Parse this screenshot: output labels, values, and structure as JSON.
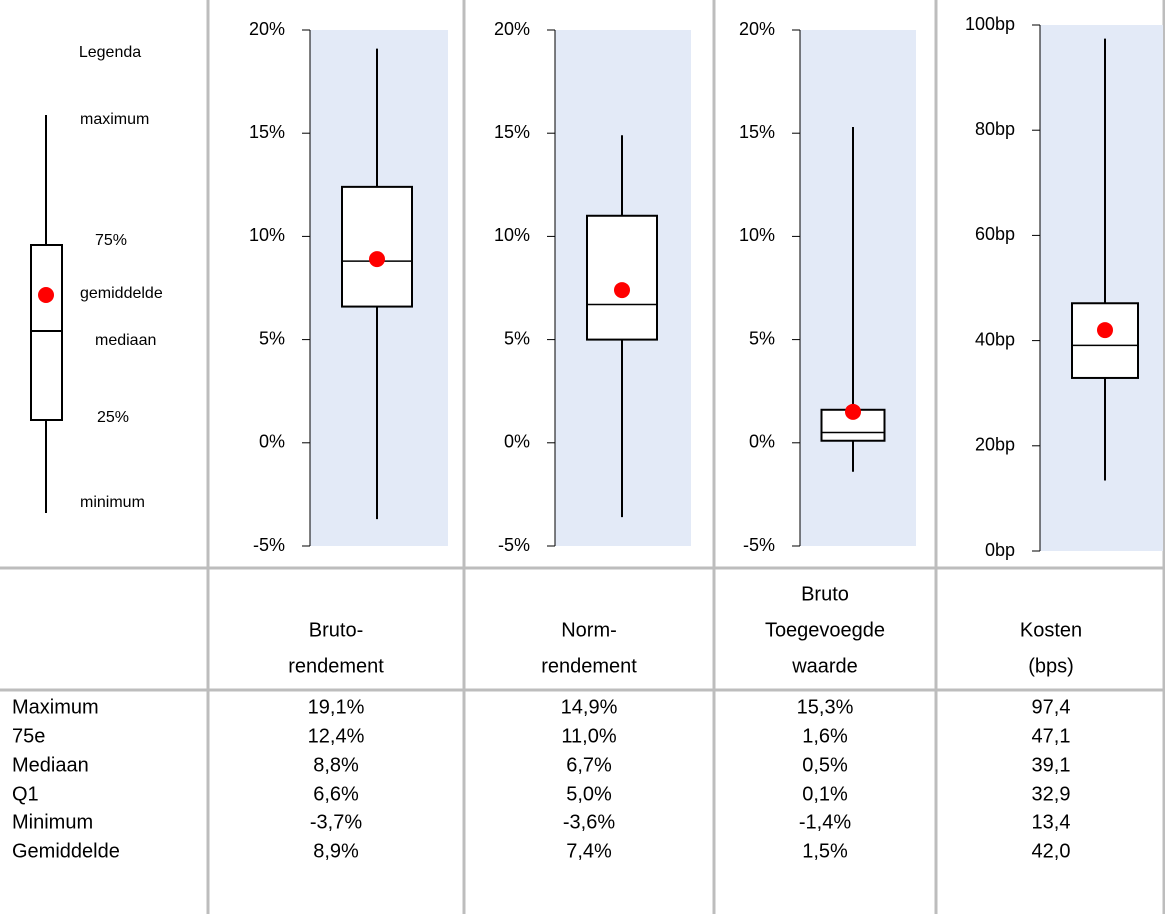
{
  "legend": {
    "title": "Legenda",
    "labels": [
      "maximum",
      "75%",
      "gemiddelde",
      "mediaan",
      "25%",
      "minimum"
    ]
  },
  "table": {
    "row_labels": [
      "Maximum",
      "75e",
      "Mediaan",
      "Q1",
      "Minimum",
      "Gemiddelde"
    ]
  },
  "chart_data": [
    {
      "type": "box",
      "title": [
        "Bruto-",
        "rendement"
      ],
      "stats": [
        19.1,
        12.4,
        8.8,
        6.6,
        -3.7,
        8.9
      ],
      "stat_labels": [
        "19,1%",
        "12,4%",
        "8,8%",
        "6,6%",
        "-3,7%",
        "8,9%"
      ],
      "box_color": "#000000",
      "mean_color": "#ff0000",
      "background": "#e3eaf7",
      "ylim": [
        -5,
        20
      ],
      "yticks": [
        {
          "value": -5,
          "label": "-5%"
        },
        {
          "value": 0,
          "label": "0%"
        },
        {
          "value": 5,
          "label": "5%"
        },
        {
          "value": 10,
          "label": "10%"
        },
        {
          "value": 15,
          "label": "15%"
        },
        {
          "value": 20,
          "label": "20%"
        }
      ]
    },
    {
      "type": "box",
      "title": [
        "Norm-",
        "rendement"
      ],
      "stats": [
        14.9,
        11.0,
        6.7,
        5.0,
        -3.6,
        7.4
      ],
      "stat_labels": [
        "14,9%",
        "11,0%",
        "6,7%",
        "5,0%",
        "-3,6%",
        "7,4%"
      ],
      "box_color": "#000000",
      "mean_color": "#ff0000",
      "background": "#e3eaf7",
      "ylim": [
        -5,
        20
      ],
      "yticks": [
        {
          "value": -5,
          "label": "-5%"
        },
        {
          "value": 0,
          "label": "0%"
        },
        {
          "value": 5,
          "label": "5%"
        },
        {
          "value": 10,
          "label": "10%"
        },
        {
          "value": 15,
          "label": "15%"
        },
        {
          "value": 20,
          "label": "20%"
        }
      ]
    },
    {
      "type": "box",
      "title": [
        "Bruto",
        "Toegevoegde",
        "waarde"
      ],
      "stats": [
        15.3,
        1.6,
        0.5,
        0.1,
        -1.4,
        1.5
      ],
      "stat_labels": [
        "15,3%",
        "1,6%",
        "0,5%",
        "0,1%",
        "-1,4%",
        "1,5%"
      ],
      "box_color": "#000000",
      "mean_color": "#ff0000",
      "background": "#e3eaf7",
      "ylim": [
        -5,
        20
      ],
      "yticks": [
        {
          "value": -5,
          "label": "-5%"
        },
        {
          "value": 0,
          "label": "0%"
        },
        {
          "value": 5,
          "label": "5%"
        },
        {
          "value": 10,
          "label": "10%"
        },
        {
          "value": 15,
          "label": "15%"
        },
        {
          "value": 20,
          "label": "20%"
        }
      ]
    },
    {
      "type": "box",
      "title": [
        "Kosten",
        "(bps)"
      ],
      "stats": [
        97.4,
        47.1,
        39.1,
        32.9,
        13.4,
        42.0
      ],
      "stat_labels": [
        "97,4",
        "47,1",
        "39,1",
        "32,9",
        "13,4",
        "42,0"
      ],
      "box_color": "#000000",
      "mean_color": "#ff0000",
      "background": "#e3eaf7",
      "ylim": [
        0,
        100
      ],
      "yticks": [
        {
          "value": 0,
          "label": "0bp"
        },
        {
          "value": 20,
          "label": "20bp"
        },
        {
          "value": 40,
          "label": "40bp"
        },
        {
          "value": 60,
          "label": "60bp"
        },
        {
          "value": 80,
          "label": "80bp"
        },
        {
          "value": 100,
          "label": "100bp"
        }
      ]
    }
  ]
}
